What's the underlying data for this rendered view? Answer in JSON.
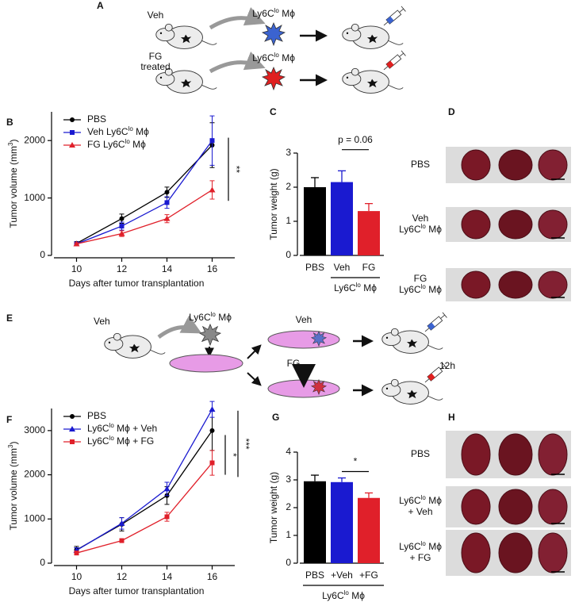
{
  "panel_labels": [
    "A",
    "B",
    "C",
    "D",
    "E",
    "F",
    "G",
    "H"
  ],
  "panel_a": {
    "rows": [
      {
        "treatment": [
          "Veh"
        ],
        "cell": [
          "Ly6C",
          "lo",
          " Mϕ"
        ]
      },
      {
        "treatment": [
          "FG",
          "treated"
        ],
        "cell": [
          "Ly6C",
          "lo",
          " Mϕ"
        ]
      }
    ]
  },
  "panel_d": {
    "rows": [
      {
        "label": [
          "PBS"
        ]
      },
      {
        "label": [
          "Veh",
          [
            "Ly6C",
            "lo",
            " Mϕ"
          ]
        ]
      },
      {
        "label": [
          "FG",
          [
            "Ly6C",
            "lo",
            " Mϕ"
          ]
        ]
      }
    ]
  },
  "panel_e": {
    "donor": "Veh",
    "cell": [
      "Ly6C",
      "lo",
      " Mϕ"
    ],
    "dish_top": "Veh",
    "dish_bottom": "FG",
    "time": "12h"
  },
  "panel_h": {
    "rows": [
      {
        "label": [
          "PBS"
        ]
      },
      {
        "label": [
          [
            "Ly6C",
            "lo",
            " Mϕ"
          ],
          "+ Veh"
        ]
      },
      {
        "label": [
          [
            "Ly6C",
            "lo",
            " Mϕ"
          ],
          "+ FG"
        ]
      }
    ]
  },
  "chart_data": [
    {
      "type": "line",
      "panel": "B",
      "xlabel": "Days after tumor transplantation",
      "ylabel": [
        "Tumor volume (mm",
        "3",
        ")"
      ],
      "x": [
        10,
        12,
        14,
        16
      ],
      "xlim": [
        9,
        17
      ],
      "xticks": [
        10,
        12,
        14,
        16
      ],
      "ylim": [
        0,
        2500
      ],
      "yticks": [
        0,
        1000,
        2000
      ],
      "series": [
        {
          "name": [
            "PBS"
          ],
          "color": "#000000",
          "marker": "circle",
          "values": [
            210,
            640,
            1100,
            1920
          ],
          "errors": [
            30,
            80,
            90,
            390
          ]
        },
        {
          "name": [
            "Veh Ly6C",
            "lo",
            " Mϕ"
          ],
          "color": "#1a1ad0",
          "marker": "square",
          "values": [
            200,
            510,
            920,
            2000
          ],
          "errors": [
            30,
            70,
            100,
            430
          ]
        },
        {
          "name": [
            "FG Ly6C",
            "lo",
            " Mϕ"
          ],
          "color": "#e0202a",
          "marker": "triangle",
          "values": [
            200,
            380,
            640,
            1140
          ],
          "errors": [
            20,
            50,
            70,
            160
          ]
        }
      ],
      "significance": [
        "**"
      ]
    },
    {
      "type": "bar",
      "panel": "C",
      "ylabel": "Tumor weight (g)",
      "categories": [
        "PBS",
        "Veh",
        "FG"
      ],
      "values": [
        2.0,
        2.15,
        1.3
      ],
      "errors": [
        0.28,
        0.33,
        0.22
      ],
      "colors": [
        "#000000",
        "#1a1ad0",
        "#e0202a"
      ],
      "ylim": [
        0,
        3
      ],
      "yticks": [
        0,
        1,
        2,
        3
      ],
      "comparison": "p = 0.06",
      "group_label": [
        "Ly6C",
        "lo",
        " Mϕ"
      ]
    },
    {
      "type": "line",
      "panel": "F",
      "xlabel": "Days after tumor transplantation",
      "ylabel": [
        "Tumor volume (mm",
        "3",
        ")"
      ],
      "x": [
        10,
        12,
        14,
        16
      ],
      "xlim": [
        9,
        17
      ],
      "xticks": [
        10,
        12,
        14,
        16
      ],
      "ylim": [
        0,
        3500
      ],
      "yticks": [
        0,
        1000,
        2000,
        3000
      ],
      "series": [
        {
          "name": [
            "PBS"
          ],
          "color": "#000000",
          "marker": "circle",
          "values": [
            300,
            880,
            1530,
            3000
          ],
          "errors": [
            80,
            150,
            200,
            450
          ]
        },
        {
          "name": [
            "Ly6C",
            "lo",
            " Mϕ + Veh"
          ],
          "color": "#1a1ad0",
          "marker": "triangle",
          "values": [
            290,
            900,
            1680,
            3480
          ],
          "errors": [
            60,
            130,
            150,
            180
          ]
        },
        {
          "name": [
            "Ly6C",
            "lo",
            " Mϕ + FG"
          ],
          "color": "#e0202a",
          "marker": "square",
          "values": [
            230,
            510,
            1050,
            2270
          ],
          "errors": [
            40,
            40,
            100,
            280
          ]
        }
      ],
      "significance": [
        "*",
        "***"
      ]
    },
    {
      "type": "bar",
      "panel": "G",
      "ylabel": "Tumor weight (g)",
      "categories": [
        "PBS",
        "+Veh",
        "+FG"
      ],
      "values": [
        2.95,
        2.92,
        2.35
      ],
      "errors": [
        0.22,
        0.15,
        0.18
      ],
      "colors": [
        "#000000",
        "#1a1ad0",
        "#e0202a"
      ],
      "ylim": [
        0,
        4
      ],
      "yticks": [
        0,
        1,
        2,
        3,
        4
      ],
      "comparison": "*",
      "group_label": [
        "Ly6C",
        "lo",
        " Mϕ"
      ]
    }
  ]
}
